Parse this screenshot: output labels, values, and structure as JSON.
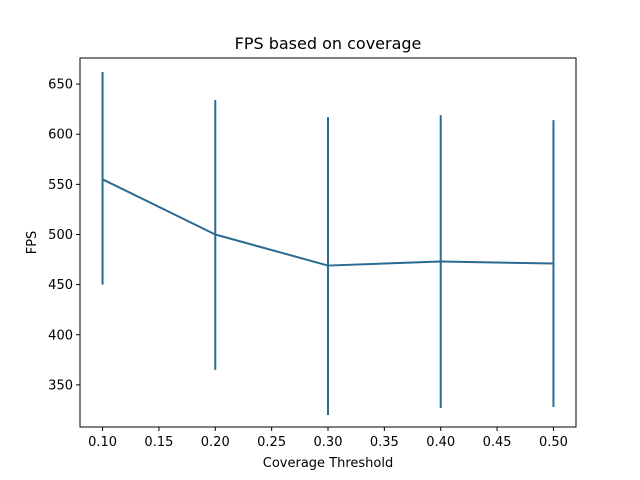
{
  "chart_data": {
    "type": "line",
    "title": "FPS based on coverage",
    "xlabel": "Coverage Threshold",
    "ylabel": "FPS",
    "x": [
      0.1,
      0.2,
      0.3,
      0.4,
      0.5
    ],
    "series": [
      {
        "values": [
          555,
          500,
          469,
          473,
          471
        ],
        "err_low": [
          450,
          365,
          320,
          327,
          328
        ],
        "err_high": [
          662,
          634,
          617,
          619,
          614
        ],
        "color": "#2b6a93"
      }
    ],
    "xlim": [
      0.08,
      0.52
    ],
    "ylim": [
      308,
      676
    ],
    "xticks": [
      0.1,
      0.15,
      0.2,
      0.25,
      0.3,
      0.35,
      0.4,
      0.45,
      0.5
    ],
    "xtick_labels": [
      "0.10",
      "0.15",
      "0.20",
      "0.25",
      "0.30",
      "0.35",
      "0.40",
      "0.45",
      "0.50"
    ],
    "yticks": [
      350,
      400,
      450,
      500,
      550,
      600,
      650
    ],
    "ytick_labels": [
      "350",
      "400",
      "450",
      "500",
      "550",
      "600",
      "650"
    ],
    "grid": false,
    "legend": "none"
  }
}
